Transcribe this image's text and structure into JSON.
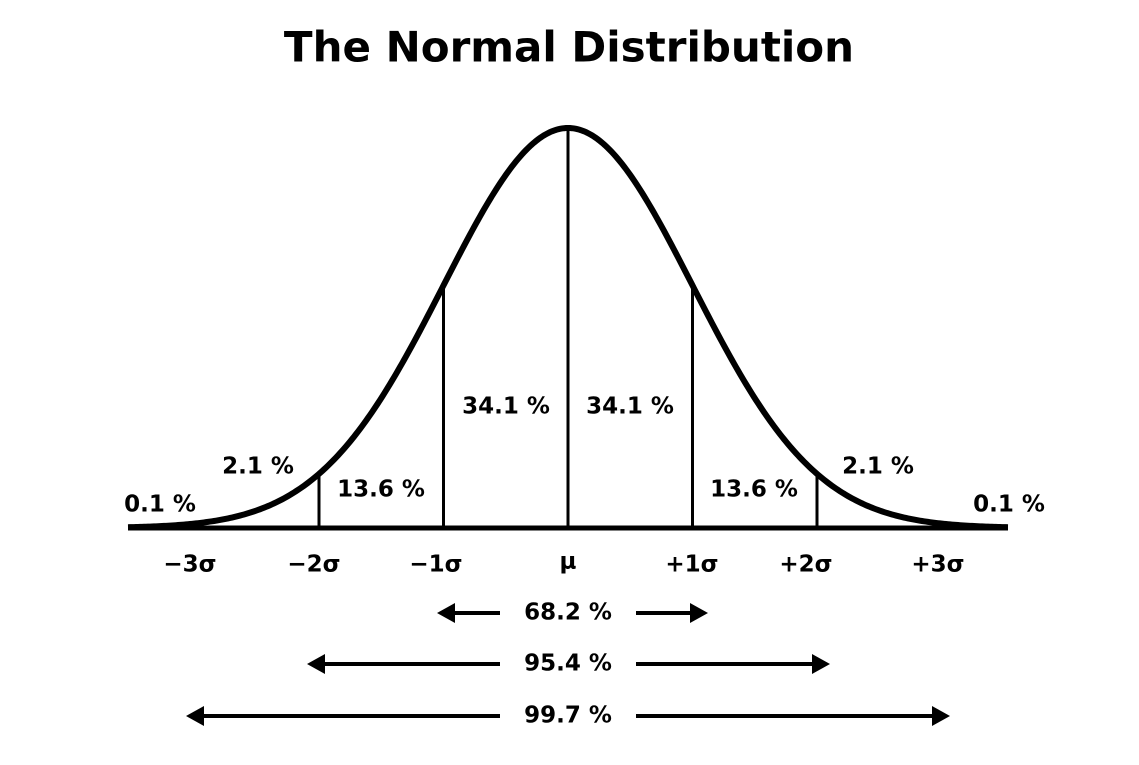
{
  "title": "The Normal Distribution",
  "region_labels": [
    "0.1 %",
    "2.1 %",
    "13.6 %",
    "34.1 %",
    "34.1 %",
    "13.6 %",
    "2.1 %",
    "0.1 %"
  ],
  "axis_labels": [
    "−3σ",
    "−2σ",
    "−1σ",
    "μ",
    "+1σ",
    "+2σ",
    "+3σ"
  ],
  "ranges": [
    "68.2 %",
    "95.4 %",
    "99.7 %"
  ]
}
